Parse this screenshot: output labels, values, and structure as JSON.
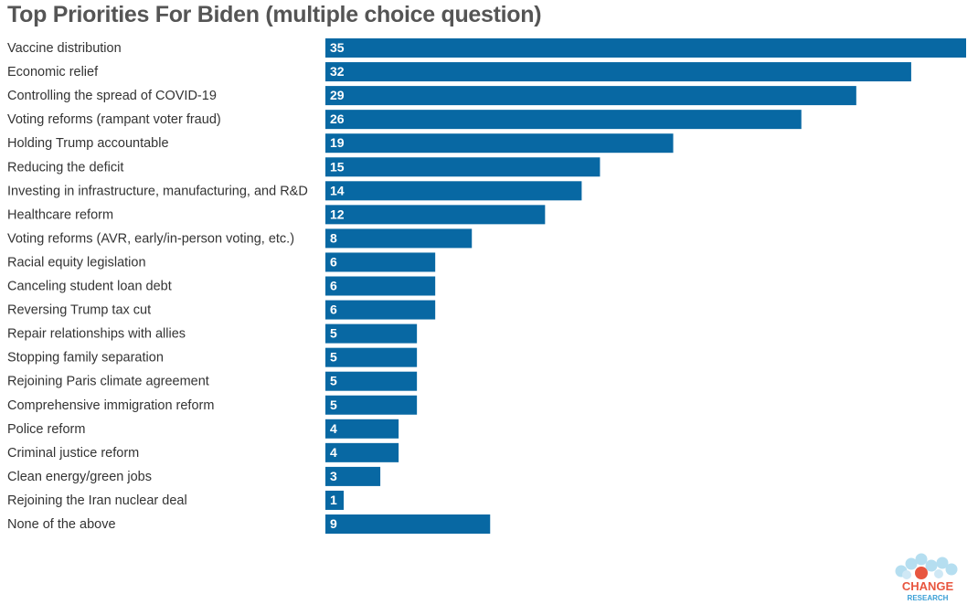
{
  "title": "Top Priorities For Biden (multiple choice question)",
  "colors": {
    "bar": "#0868a3",
    "label": "#333333",
    "title": "#555555",
    "value_text": "#ffffff"
  },
  "chart_data": {
    "type": "bar",
    "orientation": "horizontal",
    "title": "Top Priorities For Biden (multiple choice question)",
    "categories": [
      "Vaccine distribution",
      "Economic relief",
      "Controlling the spread of COVID-19",
      "Voting reforms (rampant voter fraud)",
      "Holding Trump accountable",
      "Reducing the deficit",
      "Investing in infrastructure, manufacturing, and R&D",
      "Healthcare reform",
      "Voting reforms (AVR, early/in-person voting, etc.)",
      "Racial equity legislation",
      "Canceling student loan debt",
      "Reversing Trump tax cut",
      "Repair relationships with allies",
      "Stopping family separation",
      "Rejoining Paris climate agreement",
      "Comprehensive immigration reform",
      "Police reform",
      "Criminal justice reform",
      "Clean energy/green jobs",
      "Rejoining the Iran nuclear deal",
      "None of the above"
    ],
    "values": [
      35,
      32,
      29,
      26,
      19,
      15,
      14,
      12,
      8,
      6,
      6,
      6,
      5,
      5,
      5,
      5,
      4,
      4,
      3,
      1,
      9
    ],
    "xlim": [
      0,
      35
    ],
    "data_labels": "inside-left",
    "grid": false,
    "legend": "none"
  },
  "logo": {
    "line1": "CHANGE",
    "line2": "RESEARCH"
  }
}
